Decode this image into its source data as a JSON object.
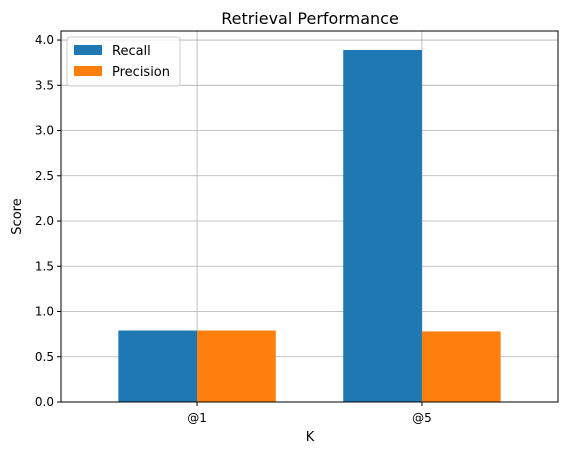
{
  "chart_data": {
    "type": "bar",
    "title": "Retrieval Performance",
    "xlabel": "K",
    "ylabel": "Score",
    "categories": [
      "@1",
      "@5"
    ],
    "series": [
      {
        "name": "Recall",
        "values": [
          0.79,
          3.89
        ],
        "color": "#1f77b4"
      },
      {
        "name": "Precision",
        "values": [
          0.79,
          0.78
        ],
        "color": "#ff7f0e"
      }
    ],
    "ylim": [
      0,
      4.1
    ],
    "yticks": [
      "0.0",
      "0.5",
      "1.0",
      "1.5",
      "2.0",
      "2.5",
      "3.0",
      "3.5",
      "4.0"
    ],
    "grid": true,
    "legend_position": "top-left"
  }
}
